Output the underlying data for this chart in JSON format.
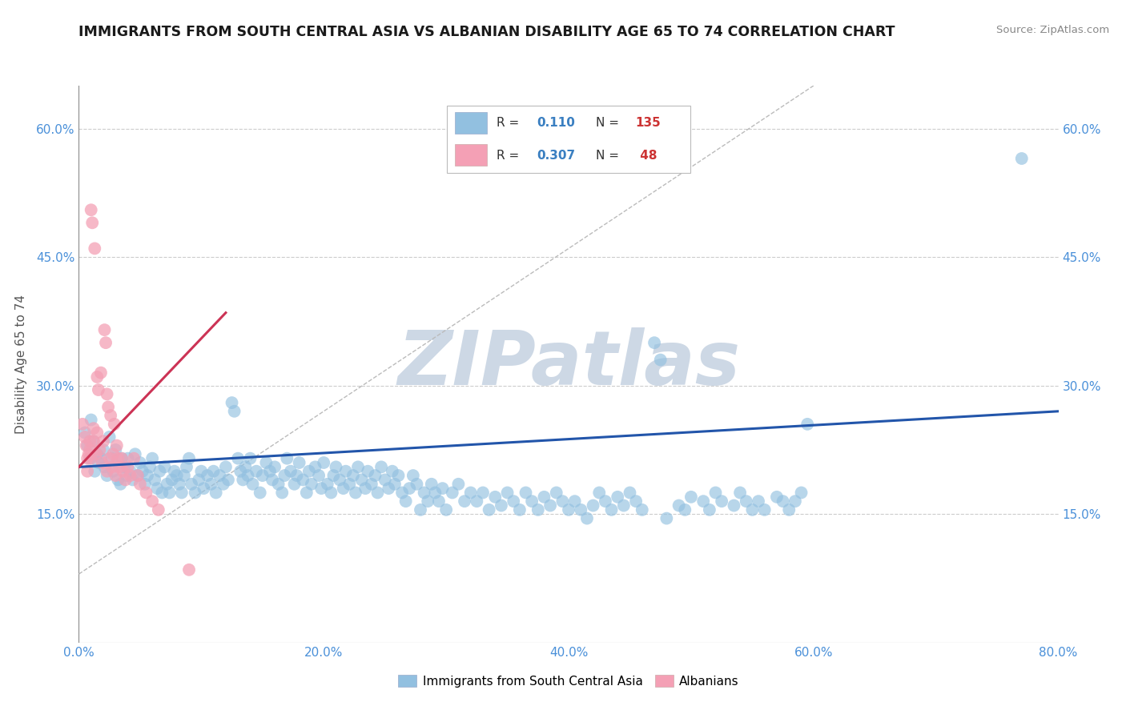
{
  "title": "IMMIGRANTS FROM SOUTH CENTRAL ASIA VS ALBANIAN DISABILITY AGE 65 TO 74 CORRELATION CHART",
  "source_text": "Source: ZipAtlas.com",
  "ylabel": "Disability Age 65 to 74",
  "xlim": [
    0.0,
    0.8
  ],
  "ylim": [
    0.0,
    0.65
  ],
  "xtick_labels": [
    "0.0%",
    "20.0%",
    "40.0%",
    "60.0%",
    "80.0%"
  ],
  "xtick_vals": [
    0.0,
    0.2,
    0.4,
    0.6,
    0.8
  ],
  "ytick_labels": [
    "15.0%",
    "30.0%",
    "45.0%",
    "60.0%"
  ],
  "ytick_vals": [
    0.15,
    0.3,
    0.45,
    0.6
  ],
  "blue_color": "#92c0e0",
  "pink_color": "#f4a0b5",
  "blue_line_color": "#2255aa",
  "pink_line_color": "#cc3355",
  "grid_color": "#cccccc",
  "watermark_color": "#cdd8e5",
  "tick_label_color": "#4a90d9",
  "blue_line_x": [
    0.0,
    0.8
  ],
  "blue_line_y": [
    0.205,
    0.27
  ],
  "pink_line_x": [
    0.0,
    0.12
  ],
  "pink_line_y": [
    0.205,
    0.385
  ],
  "diagonal_line_x": [
    0.0,
    0.6
  ],
  "diagonal_line_y": [
    0.08,
    0.65
  ],
  "blue_scatter": [
    [
      0.005,
      0.245
    ],
    [
      0.007,
      0.23
    ],
    [
      0.009,
      0.215
    ],
    [
      0.01,
      0.26
    ],
    [
      0.012,
      0.235
    ],
    [
      0.013,
      0.2
    ],
    [
      0.015,
      0.22
    ],
    [
      0.016,
      0.21
    ],
    [
      0.018,
      0.215
    ],
    [
      0.02,
      0.225
    ],
    [
      0.021,
      0.205
    ],
    [
      0.023,
      0.195
    ],
    [
      0.025,
      0.24
    ],
    [
      0.027,
      0.215
    ],
    [
      0.028,
      0.2
    ],
    [
      0.03,
      0.225
    ],
    [
      0.032,
      0.19
    ],
    [
      0.034,
      0.185
    ],
    [
      0.035,
      0.215
    ],
    [
      0.037,
      0.205
    ],
    [
      0.039,
      0.195
    ],
    [
      0.04,
      0.215
    ],
    [
      0.042,
      0.2
    ],
    [
      0.044,
      0.19
    ],
    [
      0.046,
      0.22
    ],
    [
      0.048,
      0.195
    ],
    [
      0.05,
      0.21
    ],
    [
      0.052,
      0.2
    ],
    [
      0.054,
      0.185
    ],
    [
      0.056,
      0.195
    ],
    [
      0.058,
      0.205
    ],
    [
      0.06,
      0.215
    ],
    [
      0.062,
      0.19
    ],
    [
      0.064,
      0.18
    ],
    [
      0.066,
      0.2
    ],
    [
      0.068,
      0.175
    ],
    [
      0.07,
      0.205
    ],
    [
      0.072,
      0.185
    ],
    [
      0.074,
      0.175
    ],
    [
      0.076,
      0.19
    ],
    [
      0.078,
      0.2
    ],
    [
      0.08,
      0.195
    ],
    [
      0.082,
      0.185
    ],
    [
      0.084,
      0.175
    ],
    [
      0.086,
      0.195
    ],
    [
      0.088,
      0.205
    ],
    [
      0.09,
      0.215
    ],
    [
      0.092,
      0.185
    ],
    [
      0.095,
      0.175
    ],
    [
      0.098,
      0.19
    ],
    [
      0.1,
      0.2
    ],
    [
      0.102,
      0.18
    ],
    [
      0.105,
      0.195
    ],
    [
      0.108,
      0.185
    ],
    [
      0.11,
      0.2
    ],
    [
      0.112,
      0.175
    ],
    [
      0.115,
      0.195
    ],
    [
      0.118,
      0.185
    ],
    [
      0.12,
      0.205
    ],
    [
      0.122,
      0.19
    ],
    [
      0.125,
      0.28
    ],
    [
      0.127,
      0.27
    ],
    [
      0.13,
      0.215
    ],
    [
      0.132,
      0.2
    ],
    [
      0.134,
      0.19
    ],
    [
      0.136,
      0.205
    ],
    [
      0.138,
      0.195
    ],
    [
      0.14,
      0.215
    ],
    [
      0.142,
      0.185
    ],
    [
      0.145,
      0.2
    ],
    [
      0.148,
      0.175
    ],
    [
      0.15,
      0.195
    ],
    [
      0.153,
      0.21
    ],
    [
      0.156,
      0.2
    ],
    [
      0.158,
      0.19
    ],
    [
      0.16,
      0.205
    ],
    [
      0.163,
      0.185
    ],
    [
      0.166,
      0.175
    ],
    [
      0.168,
      0.195
    ],
    [
      0.17,
      0.215
    ],
    [
      0.173,
      0.2
    ],
    [
      0.176,
      0.185
    ],
    [
      0.178,
      0.195
    ],
    [
      0.18,
      0.21
    ],
    [
      0.183,
      0.19
    ],
    [
      0.186,
      0.175
    ],
    [
      0.188,
      0.2
    ],
    [
      0.19,
      0.185
    ],
    [
      0.193,
      0.205
    ],
    [
      0.196,
      0.195
    ],
    [
      0.198,
      0.18
    ],
    [
      0.2,
      0.21
    ],
    [
      0.203,
      0.185
    ],
    [
      0.206,
      0.175
    ],
    [
      0.208,
      0.195
    ],
    [
      0.21,
      0.205
    ],
    [
      0.213,
      0.19
    ],
    [
      0.216,
      0.18
    ],
    [
      0.218,
      0.2
    ],
    [
      0.221,
      0.185
    ],
    [
      0.224,
      0.195
    ],
    [
      0.226,
      0.175
    ],
    [
      0.228,
      0.205
    ],
    [
      0.231,
      0.19
    ],
    [
      0.234,
      0.18
    ],
    [
      0.236,
      0.2
    ],
    [
      0.239,
      0.185
    ],
    [
      0.242,
      0.195
    ],
    [
      0.244,
      0.175
    ],
    [
      0.247,
      0.205
    ],
    [
      0.25,
      0.19
    ],
    [
      0.253,
      0.18
    ],
    [
      0.256,
      0.2
    ],
    [
      0.258,
      0.185
    ],
    [
      0.261,
      0.195
    ],
    [
      0.264,
      0.175
    ],
    [
      0.267,
      0.165
    ],
    [
      0.27,
      0.18
    ],
    [
      0.273,
      0.195
    ],
    [
      0.276,
      0.185
    ],
    [
      0.279,
      0.155
    ],
    [
      0.282,
      0.175
    ],
    [
      0.285,
      0.165
    ],
    [
      0.288,
      0.185
    ],
    [
      0.291,
      0.175
    ],
    [
      0.294,
      0.165
    ],
    [
      0.297,
      0.18
    ],
    [
      0.3,
      0.155
    ],
    [
      0.305,
      0.175
    ],
    [
      0.31,
      0.185
    ],
    [
      0.315,
      0.165
    ],
    [
      0.32,
      0.175
    ],
    [
      0.325,
      0.165
    ],
    [
      0.33,
      0.175
    ],
    [
      0.335,
      0.155
    ],
    [
      0.34,
      0.17
    ],
    [
      0.345,
      0.16
    ],
    [
      0.35,
      0.175
    ],
    [
      0.355,
      0.165
    ],
    [
      0.36,
      0.155
    ],
    [
      0.365,
      0.175
    ],
    [
      0.37,
      0.165
    ],
    [
      0.375,
      0.155
    ],
    [
      0.38,
      0.17
    ],
    [
      0.385,
      0.16
    ],
    [
      0.39,
      0.175
    ],
    [
      0.395,
      0.165
    ],
    [
      0.4,
      0.155
    ],
    [
      0.405,
      0.165
    ],
    [
      0.41,
      0.155
    ],
    [
      0.415,
      0.145
    ],
    [
      0.42,
      0.16
    ],
    [
      0.425,
      0.175
    ],
    [
      0.43,
      0.165
    ],
    [
      0.435,
      0.155
    ],
    [
      0.44,
      0.17
    ],
    [
      0.445,
      0.16
    ],
    [
      0.45,
      0.175
    ],
    [
      0.455,
      0.165
    ],
    [
      0.46,
      0.155
    ],
    [
      0.47,
      0.35
    ],
    [
      0.475,
      0.33
    ],
    [
      0.48,
      0.145
    ],
    [
      0.49,
      0.16
    ],
    [
      0.495,
      0.155
    ],
    [
      0.5,
      0.17
    ],
    [
      0.51,
      0.165
    ],
    [
      0.515,
      0.155
    ],
    [
      0.52,
      0.175
    ],
    [
      0.525,
      0.165
    ],
    [
      0.535,
      0.16
    ],
    [
      0.54,
      0.175
    ],
    [
      0.545,
      0.165
    ],
    [
      0.55,
      0.155
    ],
    [
      0.555,
      0.165
    ],
    [
      0.56,
      0.155
    ],
    [
      0.57,
      0.17
    ],
    [
      0.575,
      0.165
    ],
    [
      0.58,
      0.155
    ],
    [
      0.585,
      0.165
    ],
    [
      0.59,
      0.175
    ],
    [
      0.595,
      0.255
    ],
    [
      0.77,
      0.565
    ]
  ],
  "pink_scatter": [
    [
      0.003,
      0.255
    ],
    [
      0.005,
      0.24
    ],
    [
      0.006,
      0.23
    ],
    [
      0.007,
      0.215
    ],
    [
      0.007,
      0.2
    ],
    [
      0.008,
      0.22
    ],
    [
      0.009,
      0.235
    ],
    [
      0.009,
      0.225
    ],
    [
      0.01,
      0.215
    ],
    [
      0.01,
      0.505
    ],
    [
      0.011,
      0.49
    ],
    [
      0.012,
      0.25
    ],
    [
      0.012,
      0.235
    ],
    [
      0.013,
      0.46
    ],
    [
      0.014,
      0.22
    ],
    [
      0.015,
      0.245
    ],
    [
      0.015,
      0.31
    ],
    [
      0.016,
      0.295
    ],
    [
      0.017,
      0.225
    ],
    [
      0.018,
      0.315
    ],
    [
      0.019,
      0.21
    ],
    [
      0.02,
      0.235
    ],
    [
      0.021,
      0.365
    ],
    [
      0.022,
      0.35
    ],
    [
      0.023,
      0.2
    ],
    [
      0.023,
      0.29
    ],
    [
      0.024,
      0.275
    ],
    [
      0.025,
      0.215
    ],
    [
      0.026,
      0.265
    ],
    [
      0.027,
      0.205
    ],
    [
      0.028,
      0.22
    ],
    [
      0.029,
      0.255
    ],
    [
      0.03,
      0.195
    ],
    [
      0.031,
      0.23
    ],
    [
      0.032,
      0.215
    ],
    [
      0.033,
      0.205
    ],
    [
      0.035,
      0.215
    ],
    [
      0.036,
      0.2
    ],
    [
      0.038,
      0.19
    ],
    [
      0.04,
      0.205
    ],
    [
      0.042,
      0.195
    ],
    [
      0.045,
      0.215
    ],
    [
      0.048,
      0.195
    ],
    [
      0.05,
      0.185
    ],
    [
      0.055,
      0.175
    ],
    [
      0.06,
      0.165
    ],
    [
      0.065,
      0.155
    ],
    [
      0.09,
      0.085
    ]
  ]
}
